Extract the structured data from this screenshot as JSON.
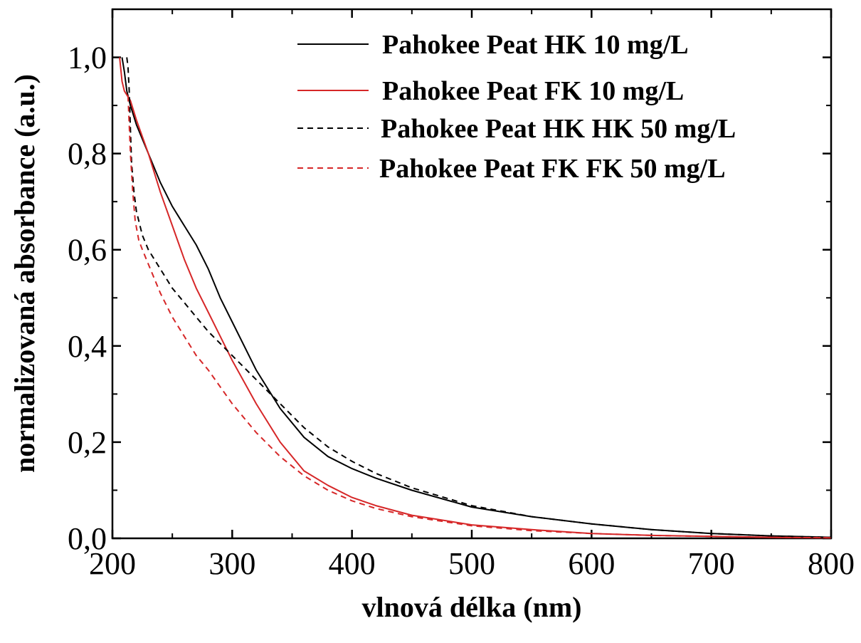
{
  "chart_data": {
    "type": "line",
    "title": "",
    "xlabel": "vlnová délka (nm)",
    "ylabel": "normalizovaná absorbance (a.u.)",
    "xlim": [
      200,
      800
    ],
    "ylim": [
      0.0,
      1.1
    ],
    "x_ticks": [
      200,
      300,
      400,
      500,
      600,
      700,
      800
    ],
    "x_tick_labels": [
      "200",
      "300",
      "400",
      "500",
      "600",
      "700",
      "800"
    ],
    "y_ticks": [
      0.0,
      0.2,
      0.4,
      0.6,
      0.8,
      1.0
    ],
    "y_tick_labels": [
      "0,0",
      "0,2",
      "0,4",
      "0,6",
      "0,8",
      "1,0"
    ],
    "grid": false,
    "legend_position": "top-right",
    "series": [
      {
        "name": "Pahokee Peat HK 10 mg/L",
        "color": "#000000",
        "dash": "solid",
        "x": [
          208,
          210,
          212,
          215,
          220,
          230,
          240,
          250,
          260,
          270,
          280,
          290,
          300,
          320,
          340,
          360,
          380,
          400,
          420,
          450,
          500,
          550,
          600,
          650,
          700,
          750,
          800
        ],
        "y": [
          1.0,
          0.97,
          0.93,
          0.9,
          0.86,
          0.8,
          0.74,
          0.69,
          0.65,
          0.61,
          0.56,
          0.5,
          0.45,
          0.35,
          0.27,
          0.21,
          0.17,
          0.145,
          0.125,
          0.1,
          0.065,
          0.045,
          0.03,
          0.018,
          0.01,
          0.005,
          0.002
        ]
      },
      {
        "name": "Pahokee Peat FK 10 mg/L",
        "color": "#d62728",
        "dash": "solid",
        "x": [
          206,
          208,
          210,
          215,
          220,
          230,
          240,
          250,
          260,
          270,
          280,
          290,
          300,
          320,
          340,
          360,
          380,
          400,
          420,
          450,
          500,
          550,
          600,
          650,
          700,
          750,
          800
        ],
        "y": [
          1.0,
          0.95,
          0.93,
          0.91,
          0.87,
          0.8,
          0.72,
          0.65,
          0.58,
          0.52,
          0.47,
          0.42,
          0.37,
          0.28,
          0.2,
          0.14,
          0.11,
          0.085,
          0.068,
          0.048,
          0.028,
          0.018,
          0.01,
          0.006,
          0.004,
          0.002,
          0.001
        ]
      },
      {
        "name": "Pahokee Peat HK HK 50 mg/L",
        "color": "#000000",
        "dash": "dashed",
        "x": [
          212,
          213,
          214,
          215,
          216,
          218,
          220,
          225,
          230,
          240,
          250,
          260,
          270,
          280,
          300,
          320,
          340,
          360,
          380,
          400,
          420,
          450,
          500,
          550,
          600,
          650,
          700,
          750,
          800
        ],
        "y": [
          1.0,
          0.98,
          0.93,
          0.85,
          0.78,
          0.72,
          0.68,
          0.63,
          0.6,
          0.56,
          0.52,
          0.49,
          0.46,
          0.43,
          0.38,
          0.33,
          0.28,
          0.23,
          0.19,
          0.16,
          0.135,
          0.105,
          0.068,
          0.045,
          0.03,
          0.018,
          0.01,
          0.005,
          0.002
        ]
      },
      {
        "name": "Pahokee Peat FK FK 50 mg/L",
        "color": "#d62728",
        "dash": "dashed",
        "x": [
          213,
          214,
          215,
          217,
          219,
          222,
          225,
          230,
          240,
          250,
          260,
          270,
          280,
          300,
          320,
          340,
          360,
          380,
          400,
          420,
          450,
          500,
          550,
          600,
          650,
          700,
          750,
          800
        ],
        "y": [
          0.92,
          0.86,
          0.8,
          0.72,
          0.66,
          0.62,
          0.6,
          0.57,
          0.51,
          0.46,
          0.42,
          0.38,
          0.35,
          0.28,
          0.22,
          0.17,
          0.13,
          0.1,
          0.078,
          0.062,
          0.045,
          0.026,
          0.016,
          0.01,
          0.006,
          0.004,
          0.002,
          0.001
        ]
      }
    ]
  }
}
